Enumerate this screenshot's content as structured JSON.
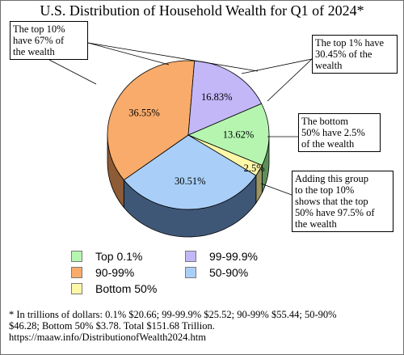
{
  "chart_data": {
    "type": "pie",
    "title": "U.S. Distribution of Household Wealth for Q1 of 2024*",
    "slices": [
      {
        "key": "top01",
        "label": "Top 0.1%",
        "value": 13.62,
        "value_label": "13.62%",
        "color": "#b5f5b0",
        "side_color": "#5e8f5b"
      },
      {
        "key": "bottom50",
        "label": "Bottom 50%",
        "value": 2.5,
        "value_label": "2.5%",
        "color": "#fdf7a8",
        "side_color": "#9a9560"
      },
      {
        "key": "p50_90",
        "label": "50-90%",
        "value": 30.51,
        "value_label": "30.51%",
        "color": "#a9cff8",
        "side_color": "#3f5777"
      },
      {
        "key": "p90_99",
        "label": "90-99%",
        "value": 36.55,
        "value_label": "36.55%",
        "color": "#f8ab6a",
        "side_color": "#8d5b35"
      },
      {
        "key": "p99_999",
        "label": "99-99.9%",
        "value": 16.83,
        "value_label": "16.83%",
        "color": "#c3b7f8",
        "side_color": "#6b6394"
      }
    ],
    "legend_order": [
      "top01",
      "p99_999",
      "p90_99",
      "p50_90",
      "bottom50"
    ],
    "legend_placement": "bottom"
  },
  "callouts": {
    "top10": "The top 10%\nhave 67% of\nthe wealth",
    "top1": "The top 1% have\n30.45% of the\nwealth",
    "bottom50": "The bottom\n50% have 2.5%\nof the wealth",
    "adding": "Adding this group\nto the top 10%\nshows that the top\n50% have 97.5% of\nthe wealth"
  },
  "footnote": {
    "line1": "* In trillions of dollars: 0.1% $20.66; 99-99.9% $25.52; 90-99% $55.44; 50-90%",
    "line2": "$46.28; Bottom 50% $3.78.  Total $151.68 Trillion.",
    "line3": "https://maaw.info/DistributionofWealth2024.htm"
  }
}
